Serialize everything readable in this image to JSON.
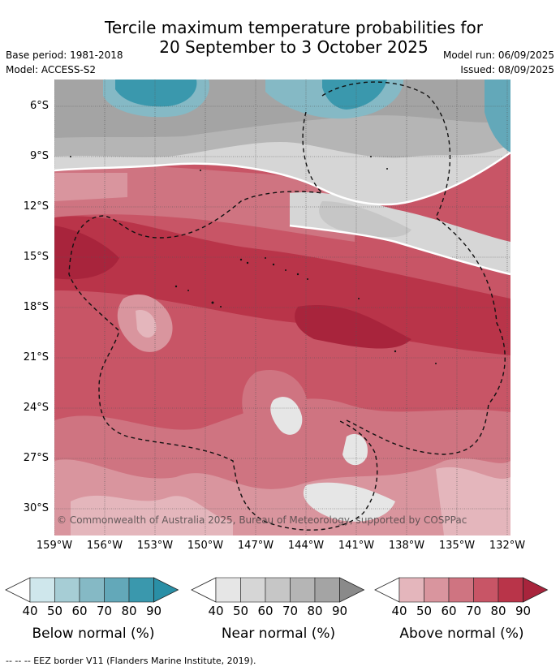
{
  "title_line1": "Tercile maximum temperature probabilities for",
  "title_line2": "20 September to 3 October 2025",
  "base_period": "Base period: 1981-2018",
  "model": "Model: ACCESS-S2",
  "model_run": "Model run: 06/09/2025",
  "issued": "Issued: 08/09/2025",
  "credit": "© Commonwealth of Australia 2025, Bureau of Meteorology, supported by COSPPac",
  "footnote": "--  --  -- EEZ border V11 (Flanders Marine Institute, 2019).",
  "map": {
    "lat_labels": [
      "6°S",
      "9°S",
      "12°S",
      "15°S",
      "18°S",
      "21°S",
      "24°S",
      "27°S",
      "30°S"
    ],
    "lon_labels": [
      "159°W",
      "156°W",
      "153°W",
      "150°W",
      "147°W",
      "144°W",
      "141°W",
      "138°W",
      "135°W",
      "132°W"
    ]
  },
  "colorbars": [
    {
      "title": "Below normal (%)",
      "ticks": [
        "40",
        "50",
        "60",
        "70",
        "80",
        "90"
      ],
      "colors": [
        "#cfe7ec",
        "#a6cdd5",
        "#85b9c5",
        "#63a8b9",
        "#3a98ad",
        "#2a8fa6"
      ]
    },
    {
      "title": "Near normal (%)",
      "ticks": [
        "40",
        "50",
        "60",
        "70",
        "80",
        "90"
      ],
      "colors": [
        "#e6e6e6",
        "#d6d6d6",
        "#c6c6c6",
        "#b5b5b5",
        "#a4a4a4",
        "#8a8a8a"
      ]
    },
    {
      "title": "Above normal (%)",
      "ticks": [
        "40",
        "50",
        "60",
        "70",
        "80",
        "90"
      ],
      "colors": [
        "#e4b6bc",
        "#d9959e",
        "#cf7481",
        "#c85566",
        "#b93449",
        "#a8243c"
      ]
    }
  ]
}
